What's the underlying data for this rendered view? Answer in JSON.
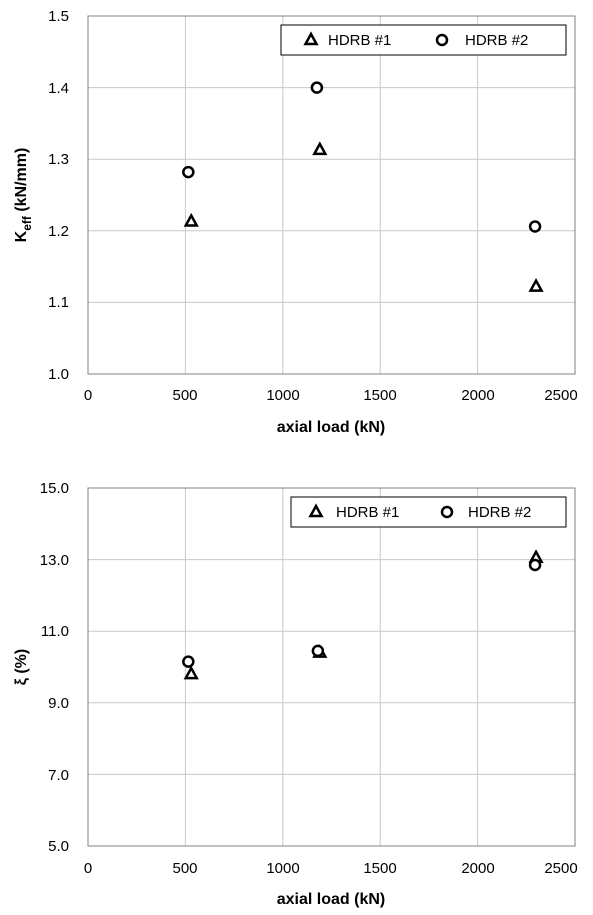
{
  "chart_data": [
    {
      "type": "scatter",
      "xlabel": "axial load (kN)",
      "ylabel_main": "K",
      "ylabel_sub": "eff",
      "ylabel_rest": " (kN/mm)",
      "xlim": [
        0,
        2500
      ],
      "ylim": [
        1.0,
        1.5
      ],
      "xticks": [
        "0",
        "500",
        "1000",
        "1500",
        "2000",
        "2500"
      ],
      "yticks": [
        "1.0",
        "1.1",
        "1.2",
        "1.3",
        "1.4",
        "1.5"
      ],
      "grid": true,
      "legend_position": "top-right",
      "series": [
        {
          "name": "HDRB #1",
          "marker": "triangle",
          "x": [
            530,
            1190,
            2300
          ],
          "y": [
            1.213,
            1.313,
            1.122
          ]
        },
        {
          "name": "HDRB #2",
          "marker": "circle",
          "x": [
            515,
            1175,
            2295
          ],
          "y": [
            1.282,
            1.4,
            1.206
          ]
        }
      ]
    },
    {
      "type": "scatter",
      "xlabel": "axial load (kN)",
      "ylabel": "ξ (%)",
      "xlim": [
        0,
        2500
      ],
      "ylim": [
        5.0,
        15.0
      ],
      "xticks": [
        "0",
        "500",
        "1000",
        "1500",
        "2000",
        "2500"
      ],
      "yticks": [
        "5.0",
        "7.0",
        "9.0",
        "11.0",
        "13.0",
        "15.0"
      ],
      "grid": true,
      "legend_position": "top-right",
      "series": [
        {
          "name": "HDRB #1",
          "marker": "triangle",
          "x": [
            530,
            1190,
            2300
          ],
          "y": [
            9.8,
            10.4,
            13.05
          ]
        },
        {
          "name": "HDRB #2",
          "marker": "circle",
          "x": [
            515,
            1180,
            2295
          ],
          "y": [
            10.15,
            10.45,
            12.85
          ]
        }
      ]
    }
  ]
}
